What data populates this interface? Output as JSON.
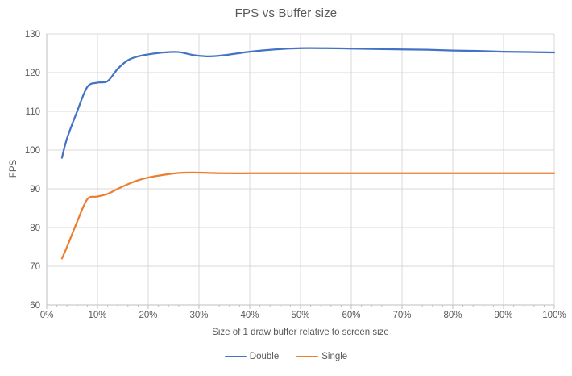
{
  "window": {
    "background": "#FFFFFF"
  },
  "colors": {
    "grid": "#D9D9D9",
    "axis": "#BFBFBF",
    "tick": "#BFBFBF",
    "text": "#595959",
    "title": "#595959",
    "series_double": "#4472C4",
    "series_single": "#ED7D31"
  },
  "chart_data": {
    "type": "line",
    "title": "FPS vs Buffer size",
    "xlabel": "Size of 1 draw buffer relative to screen size",
    "ylabel": "FPS",
    "smooth": true,
    "grid": true,
    "legend_position": "bottom",
    "x": [
      3,
      4,
      6,
      8,
      10,
      12,
      14,
      16,
      18,
      20,
      23,
      26,
      29,
      32,
      35,
      40,
      45,
      50,
      55,
      60,
      65,
      70,
      75,
      80,
      85,
      90,
      95,
      100
    ],
    "series": [
      {
        "name": "Double",
        "color": "#4472C4",
        "values": [
          98,
          103,
          110,
          116.3,
          117.4,
          117.8,
          121,
          123.2,
          124.2,
          124.7,
          125.2,
          125.3,
          124.5,
          124.2,
          124.5,
          125.4,
          126,
          126.3,
          126.3,
          126.2,
          126.1,
          126,
          125.9,
          125.7,
          125.6,
          125.4,
          125.3,
          125.2
        ]
      },
      {
        "name": "Single",
        "color": "#ED7D31",
        "values": [
          72,
          75,
          81.5,
          87.3,
          88,
          88.7,
          90,
          91.2,
          92.2,
          92.9,
          93.6,
          94.1,
          94.2,
          94.1,
          94,
          94,
          94,
          94,
          94,
          94,
          94,
          94,
          94,
          94,
          94,
          94,
          94,
          94
        ]
      }
    ],
    "x_axis": {
      "min": 0,
      "max": 100,
      "major_step": 10,
      "minor_step": 2,
      "tick_labels": [
        "0%",
        "10%",
        "20%",
        "30%",
        "40%",
        "50%",
        "60%",
        "70%",
        "80%",
        "90%",
        "100%"
      ]
    },
    "y_axis": {
      "min": 60,
      "max": 130,
      "major_step": 10,
      "tick_labels": [
        "60",
        "70",
        "80",
        "90",
        "100",
        "110",
        "120",
        "130"
      ]
    }
  }
}
